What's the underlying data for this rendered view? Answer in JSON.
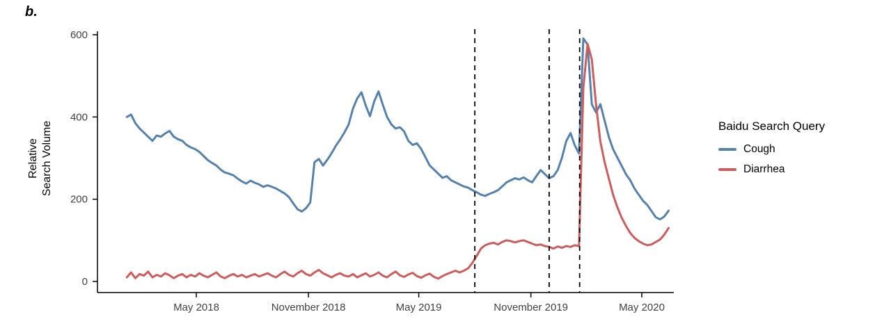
{
  "panel_label": "b.",
  "legend": {
    "title": "Baidu Search Query",
    "items": [
      {
        "label": "Cough",
        "color": "#5581AD"
      },
      {
        "label": "Diarrhea",
        "color": "#CD5C5C"
      }
    ]
  },
  "chart_data": {
    "type": "line",
    "title": "",
    "xlabel": "",
    "ylabel": "Relative\nSearch Volume",
    "legend_position": "right",
    "grid": false,
    "ylim": [
      0,
      600
    ],
    "y_ticks": [
      0,
      200,
      400,
      600
    ],
    "x_ticks": [
      {
        "date": "2018-05-01",
        "label": "May 2018"
      },
      {
        "date": "2018-11-01",
        "label": "November 2018"
      },
      {
        "date": "2019-05-01",
        "label": "May 2019"
      },
      {
        "date": "2019-11-01",
        "label": "November 2019"
      },
      {
        "date": "2020-05-01",
        "label": "May 2020"
      }
    ],
    "vlines": [
      "2019-08-01",
      "2019-12-01",
      "2020-01-20"
    ],
    "x_start": "2018-01-07",
    "x_interval_days": 7,
    "series": [
      {
        "name": "Cough",
        "color": "#5581AD",
        "values": [
          400,
          406,
          385,
          372,
          362,
          352,
          342,
          355,
          352,
          360,
          366,
          352,
          346,
          342,
          332,
          326,
          322,
          315,
          305,
          295,
          288,
          282,
          272,
          265,
          262,
          258,
          250,
          243,
          238,
          245,
          240,
          236,
          230,
          234,
          230,
          226,
          220,
          214,
          205,
          190,
          176,
          170,
          178,
          192,
          290,
          298,
          282,
          296,
          312,
          330,
          345,
          362,
          382,
          420,
          445,
          460,
          428,
          402,
          438,
          462,
          430,
          400,
          382,
          372,
          375,
          365,
          342,
          332,
          336,
          322,
          302,
          282,
          272,
          262,
          252,
          256,
          246,
          241,
          236,
          231,
          228,
          222,
          217,
          211,
          208,
          213,
          217,
          222,
          231,
          241,
          246,
          251,
          248,
          253,
          246,
          241,
          256,
          271,
          261,
          251,
          256,
          271,
          301,
          341,
          361,
          331,
          311,
          591,
          576,
          431,
          411,
          431,
          391,
          351,
          321,
          301,
          281,
          261,
          246,
          226,
          211,
          196,
          186,
          171,
          156,
          151,
          158,
          172
        ]
      },
      {
        "name": "Diarrhea",
        "color": "#CD5C5C",
        "values": [
          10,
          22,
          8,
          18,
          14,
          24,
          10,
          16,
          12,
          20,
          15,
          8,
          14,
          18,
          10,
          16,
          12,
          20,
          14,
          10,
          16,
          22,
          12,
          8,
          14,
          18,
          12,
          16,
          10,
          14,
          18,
          12,
          16,
          20,
          14,
          10,
          18,
          24,
          16,
          12,
          20,
          26,
          18,
          14,
          22,
          28,
          20,
          15,
          10,
          16,
          20,
          14,
          12,
          18,
          10,
          15,
          20,
          12,
          16,
          22,
          14,
          10,
          18,
          24,
          15,
          11,
          17,
          21,
          13,
          9,
          15,
          19,
          11,
          7,
          13,
          18,
          22,
          26,
          22,
          26,
          32,
          45,
          62,
          80,
          88,
          92,
          94,
          90,
          96,
          100,
          98,
          95,
          98,
          100,
          96,
          92,
          88,
          90,
          86,
          84,
          80,
          85,
          82,
          86,
          84,
          88,
          86,
          470,
          578,
          540,
          430,
          340,
          290,
          250,
          210,
          180,
          155,
          135,
          118,
          106,
          98,
          92,
          88,
          90,
          96,
          102,
          114,
          130
        ]
      }
    ]
  }
}
